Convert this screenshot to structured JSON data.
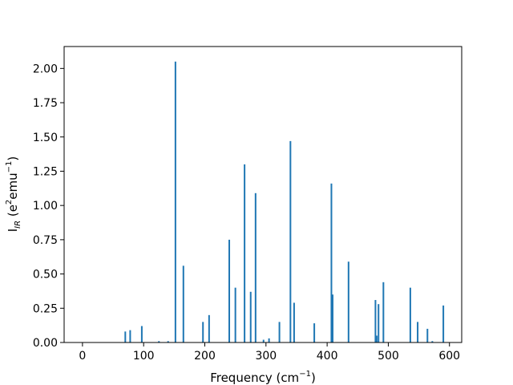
{
  "chart_data": {
    "type": "bar",
    "title": "",
    "xlabel": "Frequency (cm",
    "xlabel_sup": "−1",
    "xlabel_tail": ")",
    "ylabel_main": "I",
    "ylabel_sub": "IR",
    "ylabel_mid": " (e",
    "ylabel_sup1": "2",
    "ylabel_mid2": "emu",
    "ylabel_sup2": "−1",
    "ylabel_end": ")",
    "xlim": [
      -30,
      620
    ],
    "ylim": [
      0,
      2.16
    ],
    "xticks": [
      0,
      100,
      200,
      300,
      400,
      500,
      600
    ],
    "xtick_labels": [
      "0",
      "100",
      "200",
      "300",
      "400",
      "500",
      "600"
    ],
    "yticks": [
      0,
      0.25,
      0.5,
      0.75,
      1.0,
      1.25,
      1.5,
      1.75,
      2.0
    ],
    "ytick_labels": [
      "0.00",
      "0.25",
      "0.50",
      "0.75",
      "1.00",
      "1.25",
      "1.50",
      "1.75",
      "2.00"
    ],
    "grid": false,
    "bar_color": "#1f77b4",
    "series": [
      {
        "x": [
          70,
          78,
          97,
          125,
          140,
          152,
          165,
          197,
          207,
          240,
          250,
          265,
          275,
          283,
          296,
          305,
          322,
          340,
          346,
          379,
          407,
          409,
          435,
          479,
          481,
          484,
          492,
          536,
          548,
          564,
          572,
          590
        ],
        "values": [
          0.08,
          0.09,
          0.12,
          0.01,
          0.01,
          2.05,
          0.56,
          0.15,
          0.2,
          0.75,
          0.4,
          1.3,
          0.37,
          1.09,
          0.02,
          0.03,
          0.15,
          1.47,
          0.29,
          0.14,
          1.16,
          0.35,
          0.59,
          0.31,
          0.05,
          0.28,
          0.44,
          0.4,
          0.15,
          0.1,
          0.01,
          0.27
        ]
      }
    ]
  }
}
